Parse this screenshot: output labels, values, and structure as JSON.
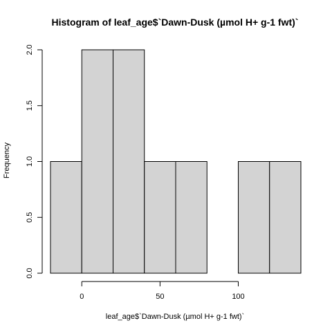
{
  "chart_data": {
    "type": "bar",
    "title": "Histogram of leaf_age$`Dawn-Dusk (µmol H+ g-1 fwt)`",
    "xlabel": "leaf_age$`Dawn-Dusk (µmol H+ g-1 fwt)`",
    "ylabel": "Frequency",
    "bins": [
      {
        "start": -20,
        "end": 0,
        "value": 1
      },
      {
        "start": 0,
        "end": 20,
        "value": 2
      },
      {
        "start": 20,
        "end": 40,
        "value": 2
      },
      {
        "start": 40,
        "end": 60,
        "value": 1
      },
      {
        "start": 60,
        "end": 80,
        "value": 1
      },
      {
        "start": 80,
        "end": 100,
        "value": 0
      },
      {
        "start": 100,
        "end": 120,
        "value": 1
      },
      {
        "start": 120,
        "end": 140,
        "value": 1
      }
    ],
    "xlim": [
      -20,
      140
    ],
    "ylim": [
      0,
      2
    ],
    "x_ticks": [
      0,
      50,
      100
    ],
    "y_ticks": [
      "0.0",
      "0.5",
      "1.0",
      "1.5",
      "2.0"
    ],
    "grid": false,
    "colors": {
      "bar_fill": "#d3d3d3",
      "bar_stroke": "#000000"
    }
  }
}
